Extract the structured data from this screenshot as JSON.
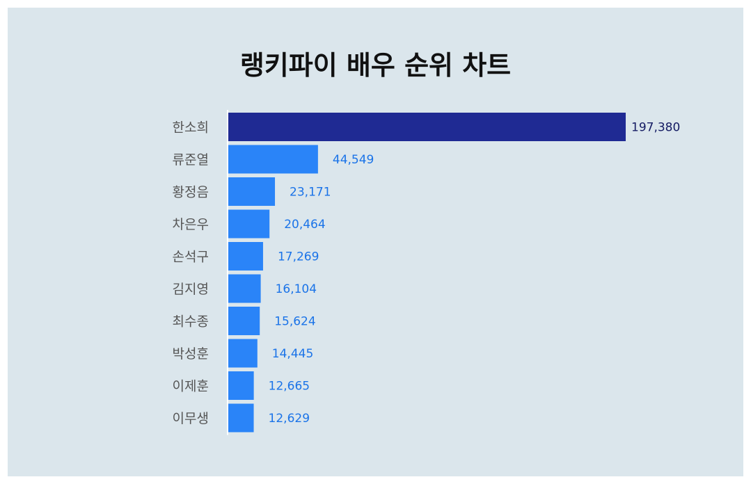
{
  "chart_data": {
    "type": "bar",
    "orientation": "horizontal",
    "title": "랭키파이 배우 순위 차트",
    "categories": [
      "한소희",
      "류준열",
      "황정음",
      "차은우",
      "손석구",
      "김지영",
      "최수종",
      "박성훈",
      "이제훈",
      "이무생"
    ],
    "values": [
      197380,
      44549,
      23171,
      20464,
      17269,
      16104,
      15624,
      14445,
      12665,
      12629
    ],
    "value_labels": [
      "197,380",
      "44,549",
      "23,171",
      "20,464",
      "17,269",
      "16,104",
      "15,624",
      "14,445",
      "12,665",
      "12,629"
    ],
    "xlim": [
      0,
      197380
    ],
    "grid": false,
    "legend": "none",
    "colors": {
      "top_bar": "#1f2a93",
      "bar": "#2a84f8",
      "top_label": "#141b63",
      "label": "#1a73e8",
      "axis": "#ffffff",
      "background": "#dbe6ec"
    }
  }
}
